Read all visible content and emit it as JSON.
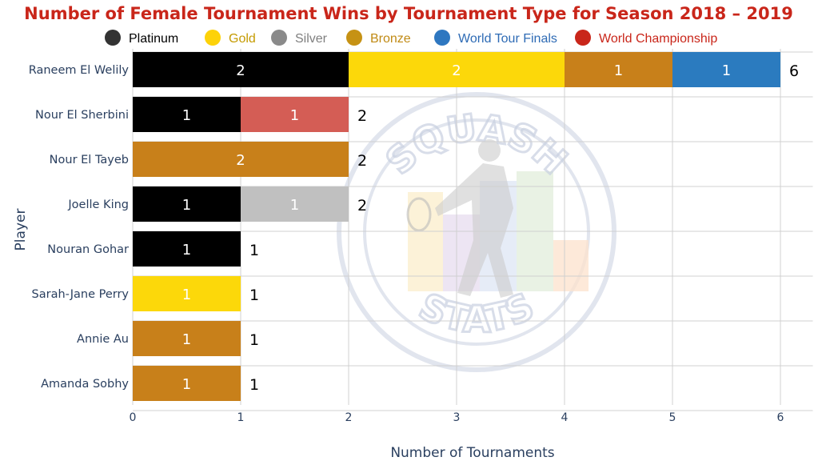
{
  "chart_data": {
    "type": "bar",
    "orientation": "horizontal",
    "stacked": true,
    "title": "Number of Female Tournament Wins by Tournament Type for Season 2018 – 2019",
    "xlabel": "Number of Tournaments",
    "ylabel": "Player",
    "xlim": [
      0,
      6.3
    ],
    "xticks": [
      "0",
      "1",
      "2",
      "3",
      "4",
      "5",
      "6"
    ],
    "grid": true,
    "legend_position": "top",
    "watermark_text": [
      "SQUASH",
      "STATS"
    ],
    "categories": [
      "Raneem El Welily",
      "Nour El Sherbini",
      "Nour El Tayeb",
      "Joelle King",
      "Nouran Gohar",
      "Sarah-Jane Perry",
      "Annie Au",
      "Amanda Sobhy"
    ],
    "series": [
      {
        "name": "Platinum",
        "color": "#000000",
        "legend_marker_color": "#333333",
        "legend_text_color": "#000000",
        "label_color": "#ffffff",
        "values": [
          2,
          1,
          0,
          1,
          1,
          0,
          0,
          0
        ]
      },
      {
        "name": "Gold",
        "color": "#fcd80a",
        "legend_marker_color": "#fdd209",
        "legend_text_color": "#c49a00",
        "label_color": "#ffffff",
        "values": [
          2,
          0,
          0,
          0,
          0,
          1,
          0,
          0
        ]
      },
      {
        "name": "Silver",
        "color": "#c0c0c0",
        "legend_marker_color": "#8a8a8a",
        "legend_text_color": "#7f7f7f",
        "label_color": "#ffffff",
        "values": [
          0,
          0,
          0,
          1,
          0,
          0,
          0,
          0
        ]
      },
      {
        "name": "Bronze",
        "color": "#c8801a",
        "legend_marker_color": "#c69214",
        "legend_text_color": "#c08a14",
        "label_color": "#ffffff",
        "values": [
          1,
          0,
          2,
          0,
          0,
          0,
          1,
          1
        ]
      },
      {
        "name": "World Tour Finals",
        "color": "#2b7bbf",
        "legend_marker_color": "#2e77c0",
        "legend_text_color": "#2e6bb5",
        "label_color": "#ffffff",
        "values": [
          1,
          0,
          0,
          0,
          0,
          0,
          0,
          0
        ]
      },
      {
        "name": "World Championship",
        "color": "#d45d55",
        "legend_marker_color": "#c9261a",
        "legend_text_color": "#c9261a",
        "label_color": "#ffffff",
        "values": [
          0,
          1,
          0,
          0,
          0,
          0,
          0,
          0
        ]
      }
    ],
    "totals": [
      "6",
      "2",
      "2",
      "2",
      "1",
      "1",
      "1",
      "1"
    ],
    "title_color": "#c9261a"
  }
}
